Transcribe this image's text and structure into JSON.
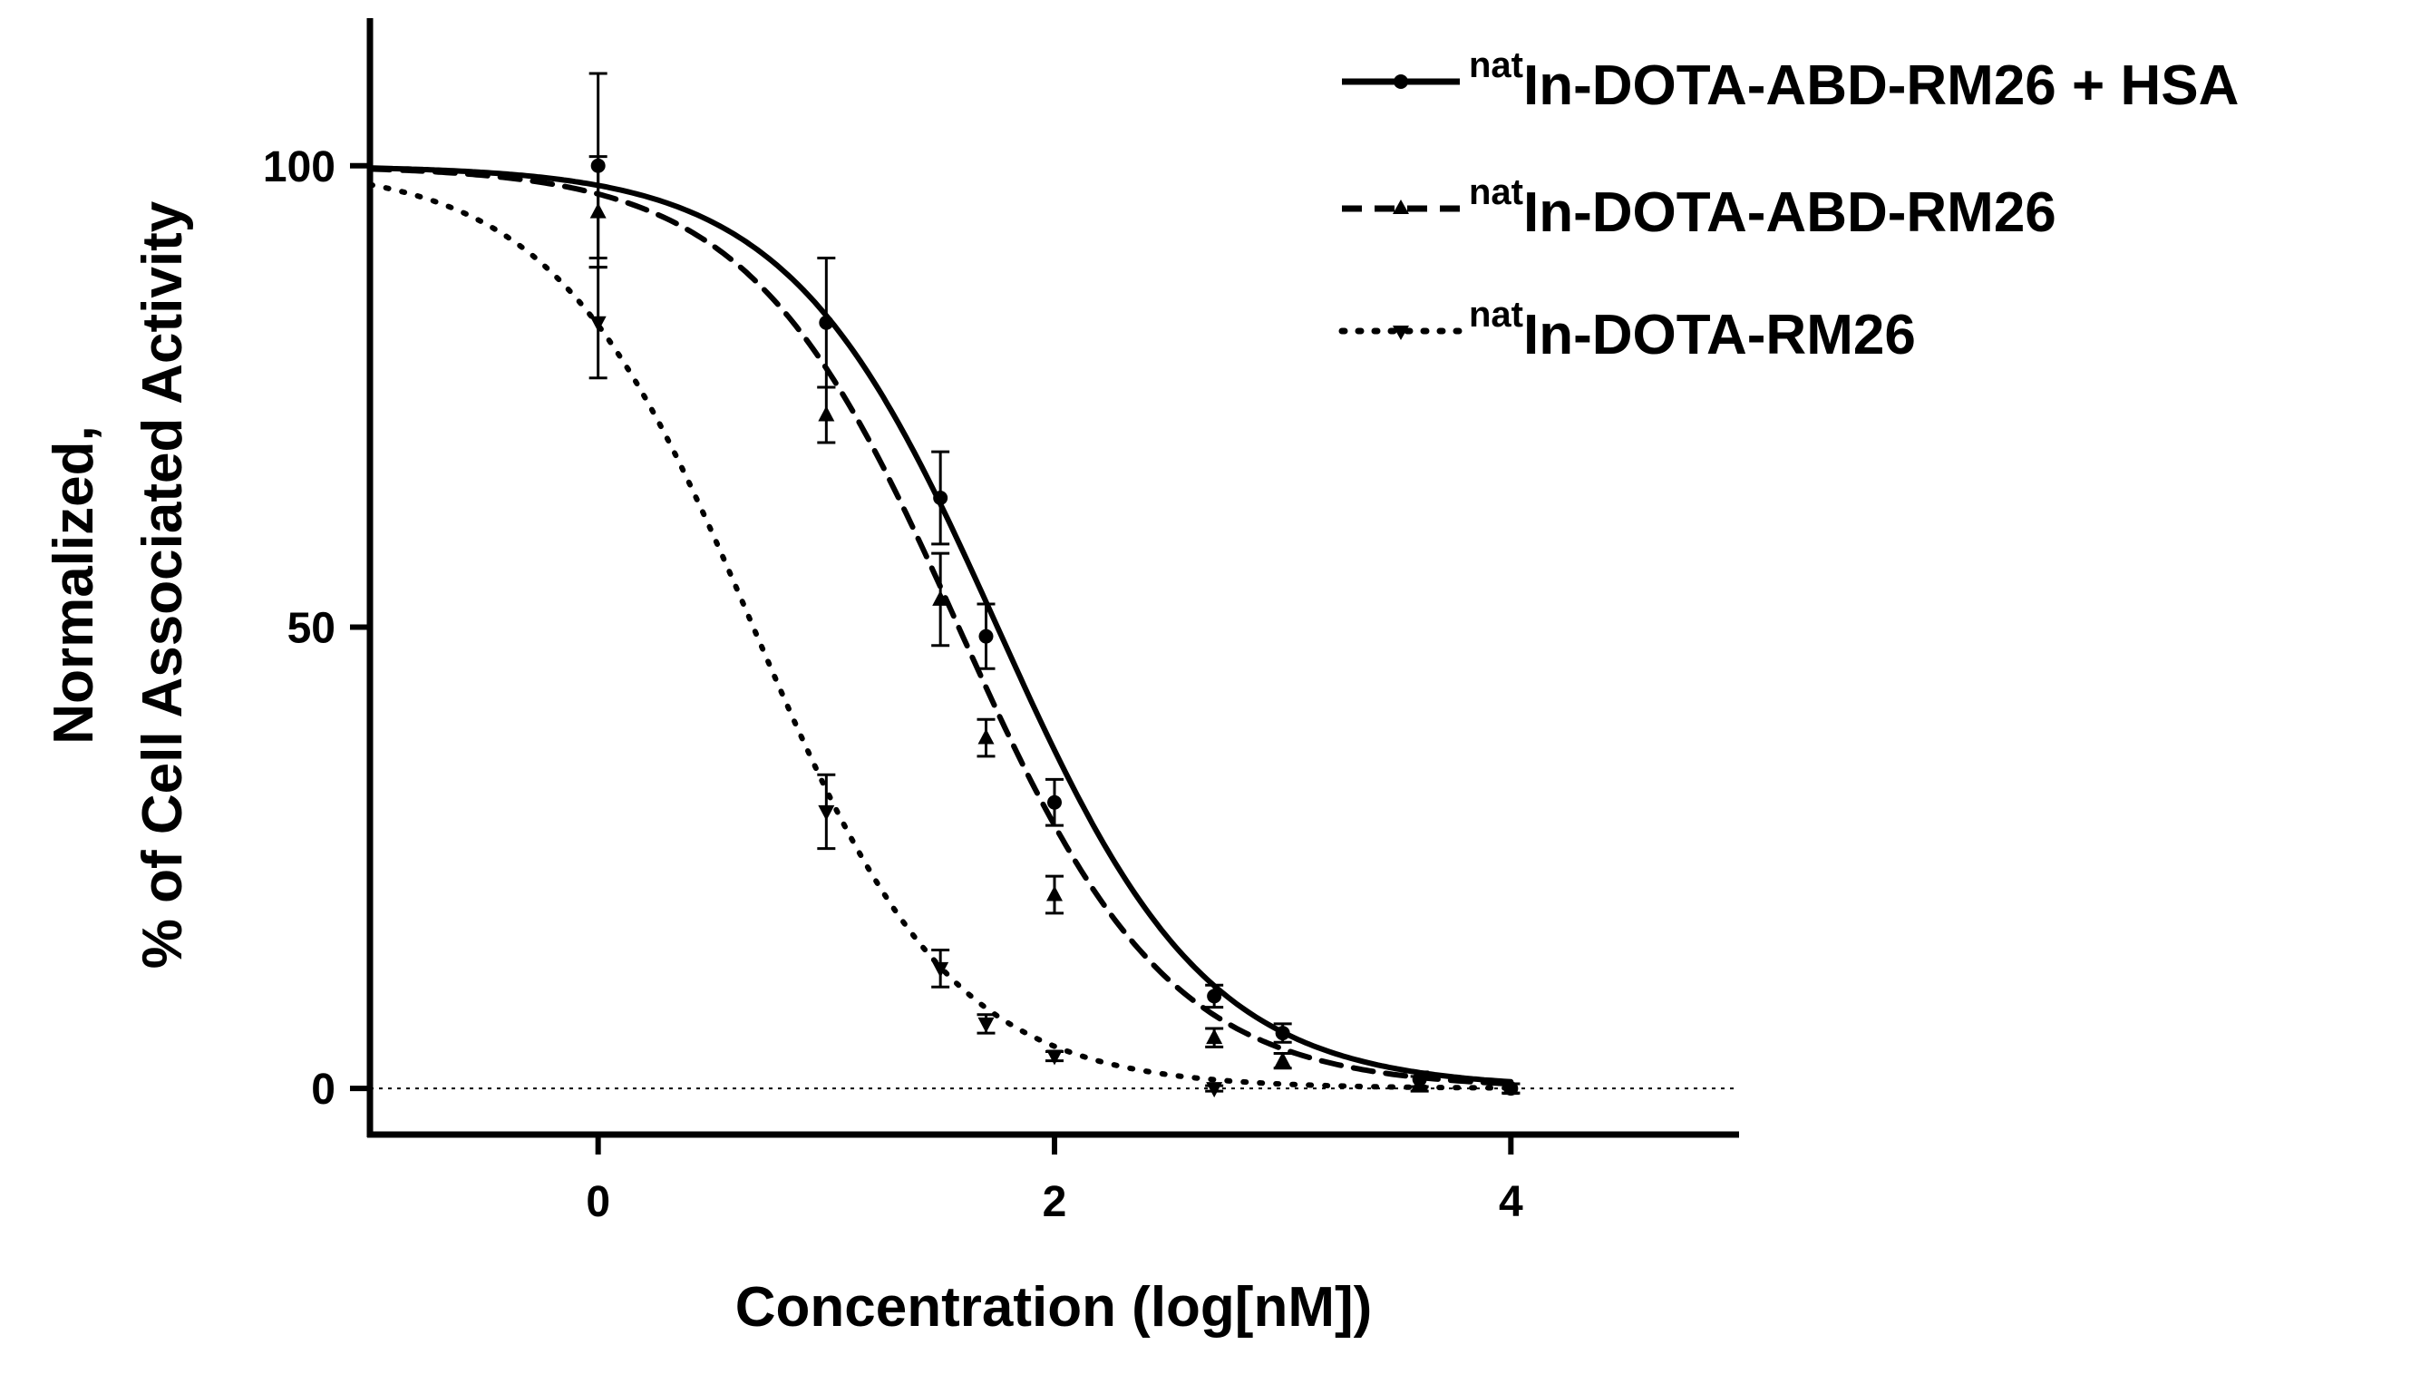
{
  "chart_data": {
    "type": "line",
    "title": "",
    "xlabel": "Concentration (log[nM])",
    "ylabel_lines": [
      "Normalized,",
      "% of Cell Associated Activity"
    ],
    "xlim": [
      -1,
      5
    ],
    "ylim": [
      -5,
      116
    ],
    "xticks": [
      0,
      2,
      4
    ],
    "yticks": [
      0,
      50,
      100
    ],
    "grid": false,
    "reference_line": {
      "y": 0,
      "style": "dotted"
    },
    "legend_position": "top-right",
    "series": [
      {
        "name": "In-DOTA-ABD-RM26 + HSA",
        "superscript": "nat",
        "label": "In-DOTA-ABD-RM26 + HSA",
        "line_style": "solid",
        "marker": "circle",
        "color": "#000000",
        "fit": {
          "top": 100,
          "bottom": 0,
          "log_ic50": 1.75,
          "hill": 0.95
        },
        "points": [
          {
            "x": 0,
            "y": 100,
            "err": 10
          },
          {
            "x": 1,
            "y": 83,
            "err": 7
          },
          {
            "x": 1.5,
            "y": 64,
            "err": 5
          },
          {
            "x": 1.7,
            "y": 49,
            "err": 3.5
          },
          {
            "x": 2,
            "y": 31,
            "err": 2.5
          },
          {
            "x": 2.7,
            "y": 10,
            "err": 1.2
          },
          {
            "x": 3,
            "y": 6,
            "err": 1
          },
          {
            "x": 3.6,
            "y": 1,
            "err": 0.8
          },
          {
            "x": 4,
            "y": 0,
            "err": 0.5
          }
        ]
      },
      {
        "name": "In-DOTA-ABD-RM26",
        "superscript": "nat",
        "label": "In-DOTA-ABD-RM26",
        "line_style": "dashed",
        "marker": "triangle-up",
        "color": "#000000",
        "fit": {
          "top": 100,
          "bottom": 0,
          "log_ic50": 1.58,
          "hill": 0.95
        },
        "points": [
          {
            "x": 0,
            "y": 95,
            "err": 6
          },
          {
            "x": 1,
            "y": 73,
            "err": 3
          },
          {
            "x": 1.5,
            "y": 53,
            "err": 5
          },
          {
            "x": 1.7,
            "y": 38,
            "err": 2
          },
          {
            "x": 2,
            "y": 21,
            "err": 2
          },
          {
            "x": 2.7,
            "y": 5.5,
            "err": 1
          },
          {
            "x": 3,
            "y": 3,
            "err": 0.8
          },
          {
            "x": 3.6,
            "y": 0.5,
            "err": 0.8
          },
          {
            "x": 4,
            "y": 0,
            "err": 0.5
          }
        ]
      },
      {
        "name": "In-DOTA-RM26",
        "superscript": "nat",
        "label": "In-DOTA-RM26",
        "line_style": "dotted",
        "marker": "triangle-down",
        "color": "#000000",
        "fit": {
          "top": 100,
          "bottom": 0,
          "log_ic50": 0.68,
          "hill": 1.0
        },
        "points": [
          {
            "x": 0,
            "y": 83,
            "err": 6
          },
          {
            "x": 1,
            "y": 30,
            "err": 4
          },
          {
            "x": 1.5,
            "y": 13,
            "err": 2
          },
          {
            "x": 1.7,
            "y": 7,
            "err": 1
          },
          {
            "x": 2,
            "y": 3.5,
            "err": 0.5
          },
          {
            "x": 2.7,
            "y": 0,
            "err": 0.3
          }
        ]
      }
    ]
  }
}
